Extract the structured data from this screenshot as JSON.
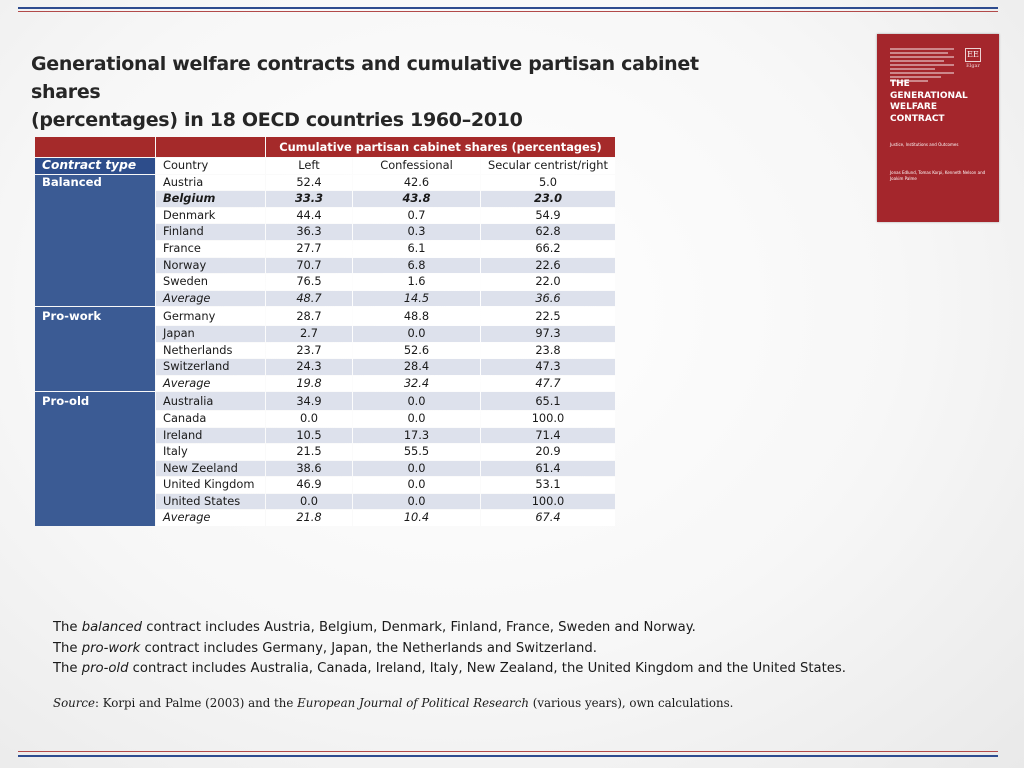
{
  "title_line1": "Generational welfare contracts and cumulative partisan cabinet shares",
  "title_line2": "(percentages) in 18 OECD countries 1960–2010",
  "book": {
    "logo": "EE",
    "logo_sub": "Elgar",
    "title_lines": [
      "THE",
      "GENERATIONAL",
      "WELFARE",
      "CONTRACT"
    ],
    "subtitle": "Justice, Institutions and Outcomes",
    "authors": "Jonas Edlund, Tomas Korpi, Kenneth Nelson and Joakim Palme"
  },
  "table": {
    "span_header": "Cumulative partisan cabinet shares (percentages)",
    "headers": {
      "contract_type": "Contract type",
      "country": "Country",
      "left": "Left",
      "confessional": "Confessional",
      "secular": "Secular centrist/right"
    },
    "groups": [
      {
        "name": "Balanced",
        "rows": [
          {
            "country": "Austria",
            "left": "52.4",
            "conf": "42.6",
            "sec": "5.0"
          },
          {
            "country": "Belgium",
            "left": "33.3",
            "conf": "43.8",
            "sec": "23.0",
            "style": "bold-italic"
          },
          {
            "country": "Denmark",
            "left": "44.4",
            "conf": "0.7",
            "sec": "54.9"
          },
          {
            "country": "Finland",
            "left": "36.3",
            "conf": "0.3",
            "sec": "62.8"
          },
          {
            "country": "France",
            "left": "27.7",
            "conf": "6.1",
            "sec": "66.2"
          },
          {
            "country": "Norway",
            "left": "70.7",
            "conf": "6.8",
            "sec": "22.6"
          },
          {
            "country": "Sweden",
            "left": "76.5",
            "conf": "1.6",
            "sec": "22.0"
          },
          {
            "country": "Average",
            "left": "48.7",
            "conf": "14.5",
            "sec": "36.6",
            "style": "italic"
          }
        ]
      },
      {
        "name": "Pro-work",
        "rows": [
          {
            "country": "Germany",
            "left": "28.7",
            "conf": "48.8",
            "sec": "22.5"
          },
          {
            "country": "Japan",
            "left": "2.7",
            "conf": "0.0",
            "sec": "97.3"
          },
          {
            "country": "Netherlands",
            "left": "23.7",
            "conf": "52.6",
            "sec": "23.8"
          },
          {
            "country": "Switzerland",
            "left": "24.3",
            "conf": "28.4",
            "sec": "47.3"
          },
          {
            "country": "Average",
            "left": "19.8",
            "conf": "32.4",
            "sec": "47.7",
            "style": "italic"
          }
        ]
      },
      {
        "name": "Pro-old",
        "rows": [
          {
            "country": "Australia",
            "left": "34.9",
            "conf": "0.0",
            "sec": "65.1"
          },
          {
            "country": "Canada",
            "left": "0.0",
            "conf": "0.0",
            "sec": "100.0"
          },
          {
            "country": "Ireland",
            "left": "10.5",
            "conf": "17.3",
            "sec": "71.4"
          },
          {
            "country": "Italy",
            "left": "21.5",
            "conf": "55.5",
            "sec": "20.9"
          },
          {
            "country": "New Zeeland",
            "left": "38.6",
            "conf": "0.0",
            "sec": "61.4"
          },
          {
            "country": "United Kingdom",
            "left": "46.9",
            "conf": "0.0",
            "sec": "53.1"
          },
          {
            "country": "United States",
            "left": "0.0",
            "conf": "0.0",
            "sec": "100.0"
          },
          {
            "country": "Average",
            "left": "21.8",
            "conf": "10.4",
            "sec": "67.4",
            "style": "italic"
          }
        ]
      }
    ]
  },
  "notes": [
    {
      "pre": "The ",
      "em": "balanced",
      "post": " contract includes Austria, Belgium, Denmark, Finland, France, Sweden and Norway."
    },
    {
      "pre": "The ",
      "em": "pro-work",
      "post": " contract includes Germany, Japan, the Netherlands and Switzerland."
    },
    {
      "pre": "The ",
      "em": "pro-old",
      "post": " contract includes Australia, Canada, Ireland, Italy, New Zealand, the United Kingdom and the United States."
    }
  ],
  "source": {
    "label": "Source",
    "text1": ": Korpi and Palme (2003) and the ",
    "journal": "European Journal of Political Research",
    "text2": " (various years), own calculations."
  },
  "colors": {
    "header_red": "#a52a2a",
    "group_blue": "#3b5b94",
    "row_alt": "#dde1ec",
    "book_red": "#a4262c"
  }
}
